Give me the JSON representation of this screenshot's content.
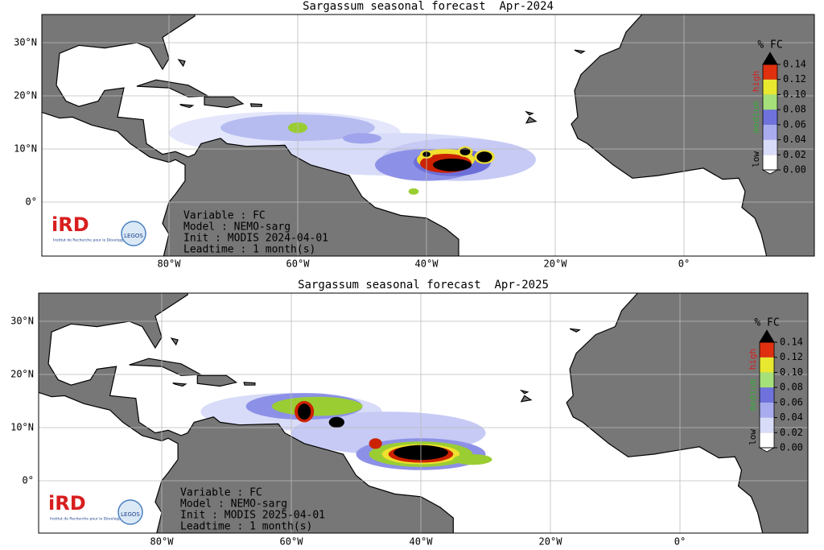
{
  "maps": [
    {
      "title": "Sargassum seasonal forecast  Apr-2024",
      "lon_ticks": [
        {
          "value": -80,
          "label": "80°W"
        },
        {
          "value": -60,
          "label": "60°W"
        },
        {
          "value": -40,
          "label": "40°W"
        },
        {
          "value": -20,
          "label": "20°W"
        },
        {
          "value": 0,
          "label": "0°"
        }
      ],
      "lat_ticks": [
        {
          "value": 30,
          "label": "30°N"
        },
        {
          "value": 20,
          "label": "20°N"
        },
        {
          "value": 10,
          "label": "10°N"
        },
        {
          "value": 0,
          "label": "0°"
        }
      ],
      "colorbar": {
        "title": "% FC",
        "ticks": [
          {
            "value": 0,
            "label": "0.00"
          },
          0.02,
          0.04,
          0.06,
          0.08,
          {
            "value": 0.1,
            "label": "0.10"
          },
          0.12,
          0.14
        ],
        "colors": [
          "#ffffff",
          "#d9dcf8",
          "#a8acee",
          "#6f72dc",
          "#a6e07a",
          "#e8e830",
          "#e03010",
          "#000000"
        ],
        "levels": [
          "low",
          "medium",
          "high"
        ]
      },
      "info": [
        "Variable : FC",
        "Model : NEMO-sarg",
        "Init : MODIS 2024-04-01",
        "Leadtime : 1 month(s)"
      ],
      "logos": {
        "ird": "iRD",
        "ird_caption": "Institut de Recherche pour le Développement",
        "legos": "LEGOS"
      }
    },
    {
      "title": "Sargassum seasonal forecast  Apr-2025",
      "lon_ticks": [
        {
          "value": -80,
          "label": "80°W"
        },
        {
          "value": -60,
          "label": "60°W"
        },
        {
          "value": -40,
          "label": "40°W"
        },
        {
          "value": -20,
          "label": "20°W"
        },
        {
          "value": 0,
          "label": "0°"
        }
      ],
      "lat_ticks": [
        {
          "value": 30,
          "label": "30°N"
        },
        {
          "value": 20,
          "label": "20°N"
        },
        {
          "value": 10,
          "label": "10°N"
        },
        {
          "value": 0,
          "label": "0°"
        }
      ],
      "colorbar": {
        "title": "% FC",
        "ticks": [
          {
            "value": 0,
            "label": "0.00"
          },
          0.02,
          0.04,
          0.06,
          0.08,
          {
            "value": 0.1,
            "label": "0.10"
          },
          0.12,
          0.14
        ],
        "colors": [
          "#ffffff",
          "#d9dcf8",
          "#a8acee",
          "#6f72dc",
          "#a6e07a",
          "#e8e830",
          "#e03010",
          "#000000"
        ],
        "levels": [
          "low",
          "medium",
          "high"
        ]
      },
      "info": [
        "Variable : FC",
        "Model : NEMO-sarg",
        "Init : MODIS 2025-04-01",
        "Leadtime : 1 month(s)"
      ],
      "logos": {
        "ird": "iRD",
        "ird_caption": "Institut de Recherche pour le Développement",
        "legos": "LEGOS"
      }
    }
  ]
}
